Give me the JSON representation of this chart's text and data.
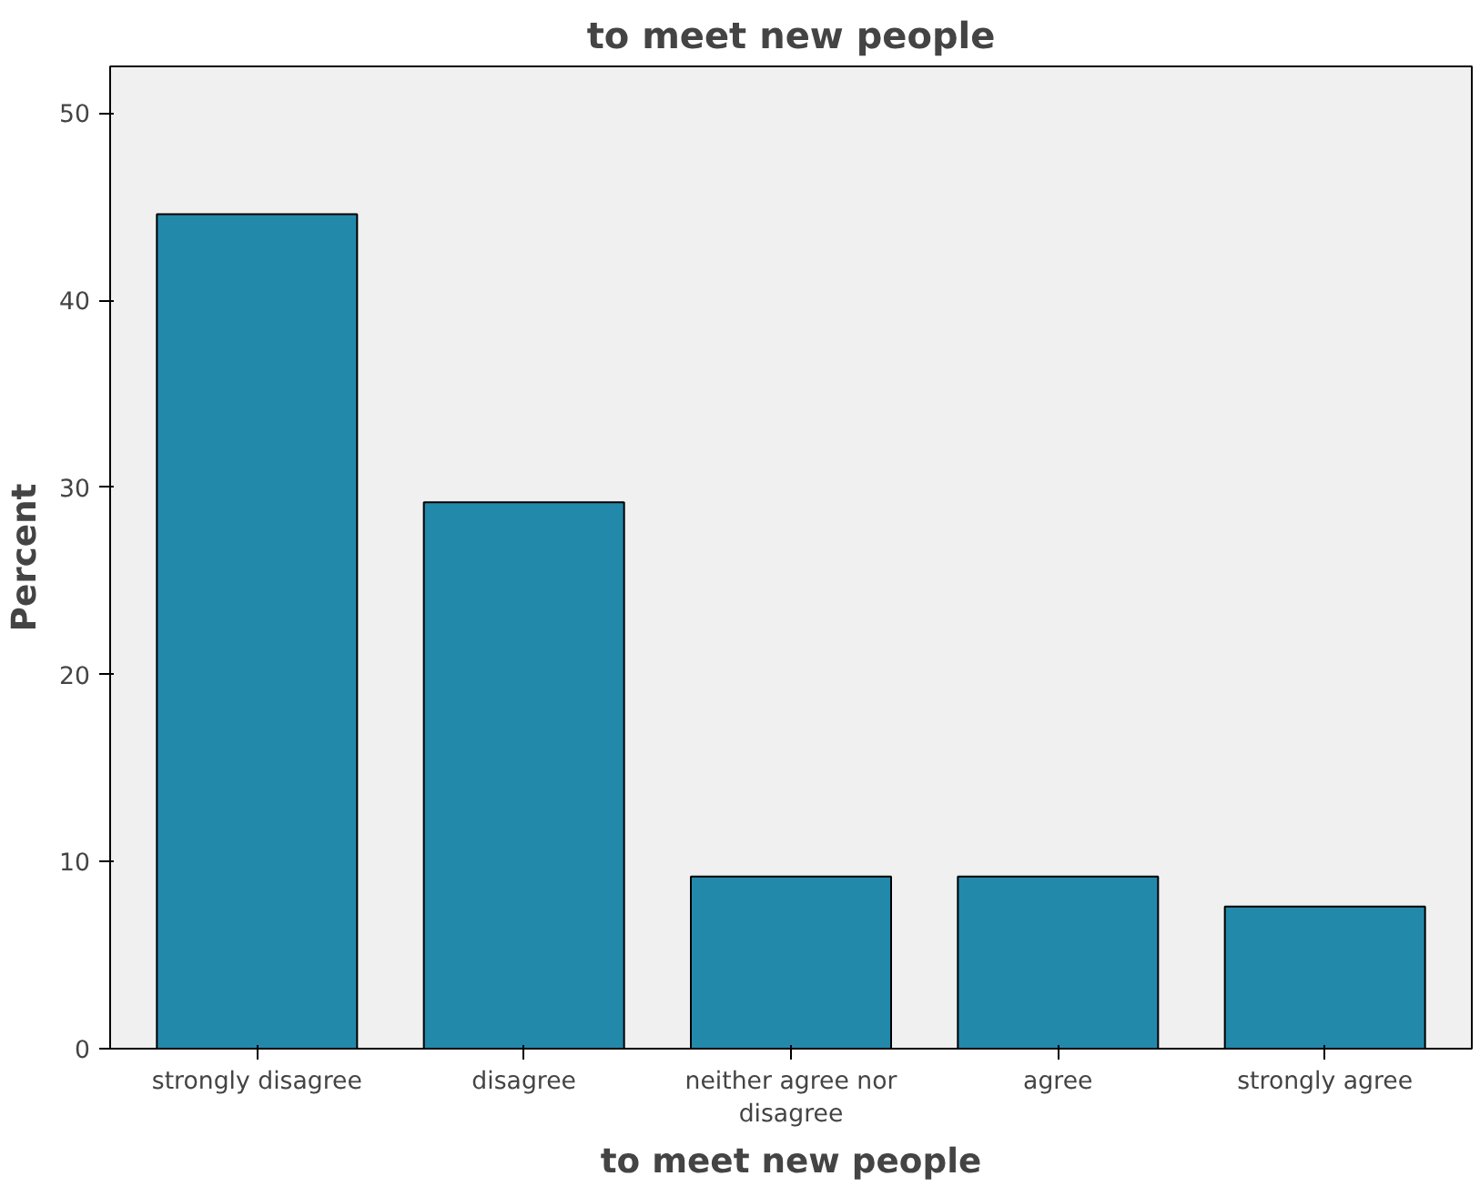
{
  "chart_data": {
    "type": "bar",
    "title": "to meet new people",
    "xlabel": "to meet new people",
    "ylabel": "Percent",
    "categories": [
      "strongly disagree",
      "disagree",
      "neither agree nor disagree",
      "agree",
      "strongly agree"
    ],
    "values": [
      44.6,
      29.2,
      9.2,
      9.2,
      7.6
    ],
    "color": "#2389ab",
    "ylim": [
      0,
      52.5
    ],
    "yticks": [
      0,
      10,
      20,
      30,
      40,
      50
    ],
    "grid": false
  }
}
